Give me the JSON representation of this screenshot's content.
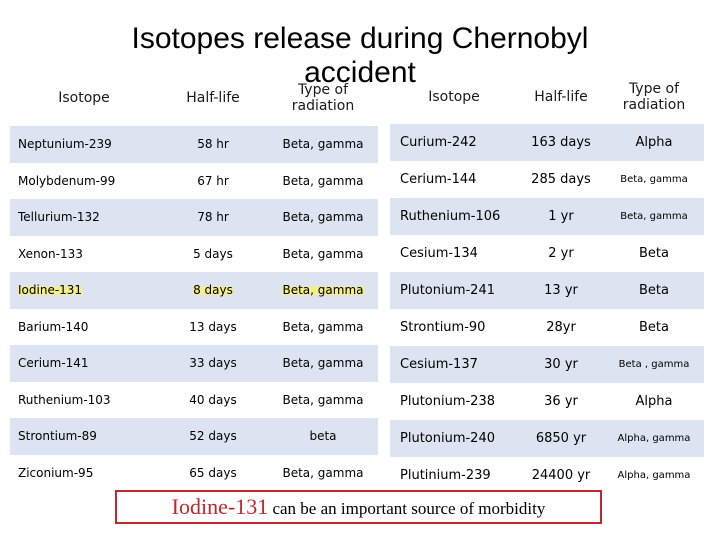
{
  "title_line1": "Isotopes release during Chernobyl",
  "title_line2": "accident",
  "left_table": {
    "headers": [
      "Isotope",
      "Half-life",
      "Type of radiation"
    ],
    "rows": [
      {
        "isotope": "Neptunium-239",
        "half_life": "58 hr",
        "type": "Beta, gamma"
      },
      {
        "isotope": "Molybdenum-99",
        "half_life": "67 hr",
        "type": "Beta, gamma"
      },
      {
        "isotope": "Tellurium-132",
        "half_life": "78 hr",
        "type": "Beta, gamma"
      },
      {
        "isotope": "Xenon-133",
        "half_life": "5 days",
        "type": "Beta, gamma"
      },
      {
        "isotope": "Iodine-131",
        "half_life": "8 days",
        "type": "Beta, gamma"
      },
      {
        "isotope": "Barium-140",
        "half_life": "13 days",
        "type": "Beta, gamma"
      },
      {
        "isotope": "Cerium-141",
        "half_life": "33 days",
        "type": "Beta, gamma"
      },
      {
        "isotope": "Ruthenium-103",
        "half_life": "40 days",
        "type": "Beta, gamma"
      },
      {
        "isotope": "Strontium-89",
        "half_life": "52 days",
        "type": "beta"
      },
      {
        "isotope": "Ziconium-95",
        "half_life": "65 days",
        "type": "Beta, gamma"
      }
    ]
  },
  "right_table": {
    "headers": [
      "Isotope",
      "Half-life",
      "Type of radiation"
    ],
    "rows": [
      {
        "isotope": "Curium-242",
        "half_life": "163 days",
        "type": "Alpha"
      },
      {
        "isotope": "Cerium-144",
        "half_life": "285 days",
        "type": "Beta, gamma"
      },
      {
        "isotope": "Ruthenium-106",
        "half_life": "1 yr",
        "type": "Beta, gamma"
      },
      {
        "isotope": "Cesium-134",
        "half_life": "2 yr",
        "type": "Beta"
      },
      {
        "isotope": "Plutonium-241",
        "half_life": "13 yr",
        "type": "Beta"
      },
      {
        "isotope": "Strontium-90",
        "half_life": "28yr",
        "type": "Beta"
      },
      {
        "isotope": "Cesium-137",
        "half_life": "30 yr",
        "type": "Beta , gamma"
      },
      {
        "isotope": "Plutonium-238",
        "half_life": "36 yr",
        "type": "Alpha"
      },
      {
        "isotope": "Plutonium-240",
        "half_life": "6850 yr",
        "type": "Alpha, gamma"
      },
      {
        "isotope": "Plutinium-239",
        "half_life": "24400 yr",
        "type": "Alpha, gamma"
      }
    ]
  },
  "note": {
    "emphasis": "Iodine-131",
    "text": " can be an important source of morbidity"
  },
  "colors": {
    "row_band": "#dbe4f0",
    "highlight": "#f3ef8a",
    "note_border": "#c0272d"
  }
}
